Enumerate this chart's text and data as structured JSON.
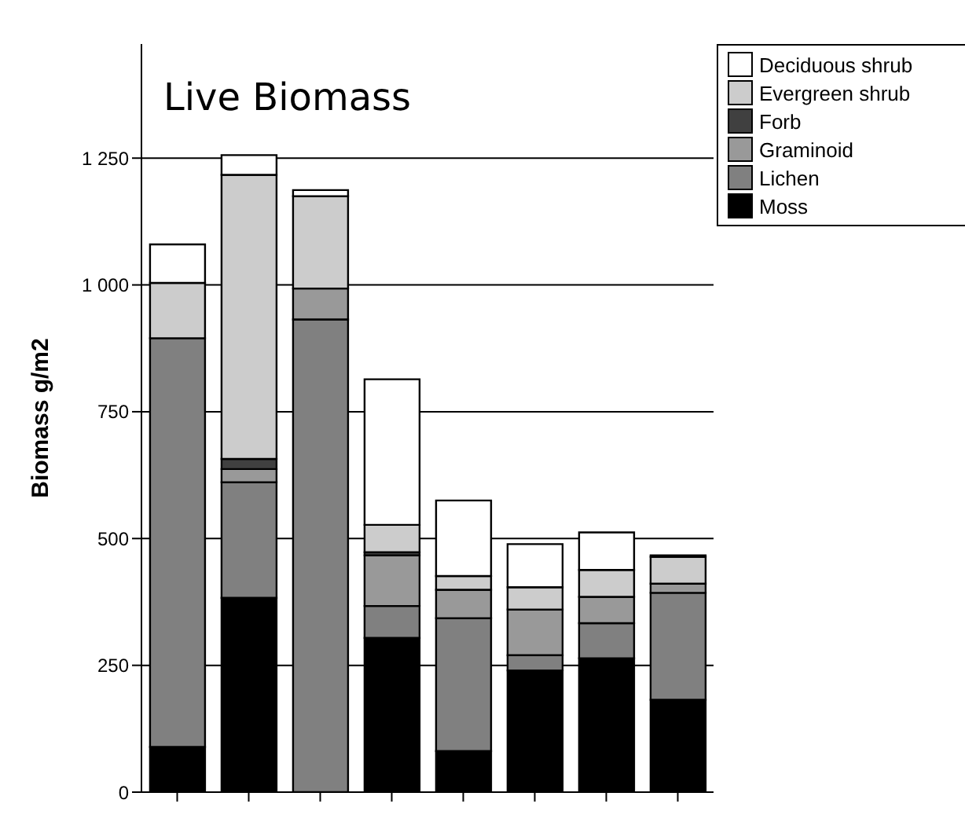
{
  "chart_data": {
    "type": "bar",
    "title": "Live Biomass",
    "ylabel": "Biomass g/m2",
    "stacked": true,
    "categories": [
      null,
      null,
      null,
      null,
      null,
      null,
      null,
      null
    ],
    "series": [
      {
        "name": "Moss",
        "color": "#000000",
        "values": [
          89,
          383,
          0,
          304,
          81,
          240,
          264,
          182
        ]
      },
      {
        "name": "Lichen",
        "color": "#808080",
        "values": [
          806,
          228,
          932,
          63,
          262,
          30,
          69,
          211
        ]
      },
      {
        "name": "Graminoid",
        "color": "#999999",
        "values": [
          0,
          26,
          61,
          100,
          56,
          90,
          52,
          18
        ]
      },
      {
        "name": "Forb",
        "color": "#404040",
        "values": [
          0,
          20,
          0,
          6,
          0,
          null,
          0,
          0
        ]
      },
      {
        "name": "Evergreen shrub",
        "color": "#cccccc",
        "values": [
          109,
          560,
          182,
          54,
          27,
          44,
          53,
          53
        ]
      },
      {
        "name": "Deciduous shrub",
        "color": "#ffffff",
        "values": [
          76,
          39,
          12,
          287,
          149,
          85,
          74,
          3
        ]
      }
    ],
    "ylim": [
      0,
      1475
    ],
    "yticks": [
      0,
      250,
      500,
      750,
      {
        "value": 1000,
        "label": "1 000"
      },
      {
        "value": 1250,
        "label": "1 250"
      }
    ],
    "grid": "y",
    "legend": "top right"
  }
}
